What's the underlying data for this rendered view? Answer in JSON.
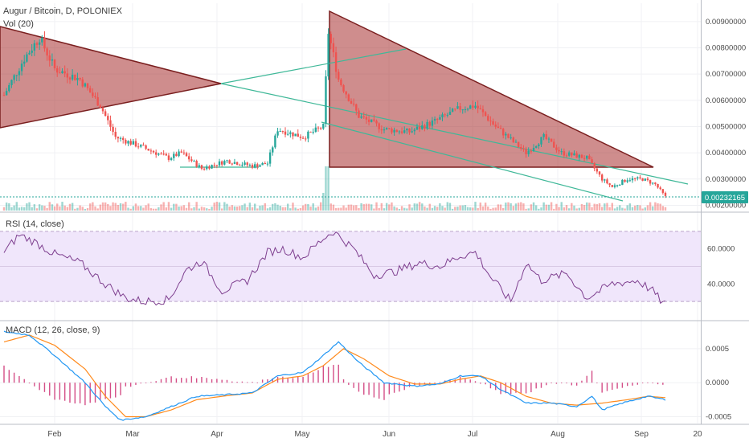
{
  "chart_data": {
    "symbol_title": "Augur / Bitcoin, D, POLONIEX",
    "volume_label": "Vol (20)",
    "rsi_label": "RSI (14, close)",
    "macd_label": "MACD (12, 26, close, 9)",
    "last_price": "0.00232165",
    "x_ticks": [
      "Feb",
      "Mar",
      "Apr",
      "May",
      "Jun",
      "Jul",
      "Aug",
      "Sep",
      "20"
    ],
    "price_axis": {
      "ticks": [
        "0.00900000",
        "0.00800000",
        "0.00700000",
        "0.00600000",
        "0.00500000",
        "0.00400000",
        "0.00300000",
        "0.00200000"
      ],
      "values": [
        0.009,
        0.008,
        0.007,
        0.006,
        0.005,
        0.004,
        0.003,
        0.002
      ],
      "range": [
        0.0018,
        0.0097
      ]
    },
    "rsi_axis": {
      "ticks": [
        "60.0000",
        "40.0000"
      ],
      "values": [
        60,
        40
      ],
      "range": [
        20,
        80
      ],
      "band": [
        30,
        70
      ]
    },
    "macd_axis": {
      "ticks": [
        "0.0005",
        "0.0000",
        "-0.0005"
      ],
      "values": [
        0.0005,
        0.0,
        -0.0005
      ],
      "range": [
        -0.0006,
        0.0009
      ]
    },
    "colors": {
      "up": "#26a69a",
      "down": "#ef5350",
      "rsi": "#7e3f8f",
      "rsi_band": "#f0e6fb",
      "macd": "#2196f3",
      "signal": "#ff8a1c",
      "histogram": "#cc2f72",
      "triangle_fill": "#a8302f",
      "triangle_edge": "#7a1f1f",
      "trendline": "#3fb898"
    },
    "price_anchors": [
      [
        0,
        0.0062
      ],
      [
        8,
        0.0076
      ],
      [
        14,
        0.0084
      ],
      [
        20,
        0.0072
      ],
      [
        30,
        0.0068
      ],
      [
        38,
        0.0058
      ],
      [
        44,
        0.0046
      ],
      [
        55,
        0.0042
      ],
      [
        65,
        0.0038
      ],
      [
        70,
        0.004
      ],
      [
        78,
        0.0034
      ],
      [
        88,
        0.0037
      ],
      [
        98,
        0.0035
      ],
      [
        104,
        0.0036
      ],
      [
        108,
        0.0049
      ],
      [
        118,
        0.0046
      ],
      [
        126,
        0.005
      ],
      [
        128,
        0.0086
      ],
      [
        132,
        0.0068
      ],
      [
        140,
        0.0054
      ],
      [
        150,
        0.0049
      ],
      [
        160,
        0.0048
      ],
      [
        170,
        0.0052
      ],
      [
        180,
        0.0057
      ],
      [
        186,
        0.0058
      ],
      [
        194,
        0.005
      ],
      [
        200,
        0.0045
      ],
      [
        206,
        0.004
      ],
      [
        213,
        0.0046
      ],
      [
        220,
        0.004
      ],
      [
        230,
        0.0038
      ],
      [
        236,
        0.003
      ],
      [
        240,
        0.0027
      ],
      [
        246,
        0.003
      ],
      [
        252,
        0.003
      ],
      [
        257,
        0.0028
      ],
      [
        261,
        0.00232
      ]
    ],
    "rsi_anchors": [
      [
        0,
        58
      ],
      [
        6,
        68
      ],
      [
        12,
        64
      ],
      [
        20,
        57
      ],
      [
        30,
        52
      ],
      [
        40,
        40
      ],
      [
        48,
        32
      ],
      [
        55,
        30
      ],
      [
        65,
        31
      ],
      [
        72,
        48
      ],
      [
        78,
        53
      ],
      [
        86,
        36
      ],
      [
        96,
        42
      ],
      [
        104,
        58
      ],
      [
        110,
        60
      ],
      [
        118,
        55
      ],
      [
        126,
        66
      ],
      [
        130,
        70
      ],
      [
        138,
        60
      ],
      [
        146,
        45
      ],
      [
        154,
        47
      ],
      [
        164,
        52
      ],
      [
        172,
        50
      ],
      [
        180,
        56
      ],
      [
        186,
        58
      ],
      [
        192,
        44
      ],
      [
        200,
        30
      ],
      [
        206,
        52
      ],
      [
        212,
        42
      ],
      [
        222,
        46
      ],
      [
        230,
        32
      ],
      [
        240,
        40
      ],
      [
        250,
        42
      ],
      [
        256,
        36
      ],
      [
        260,
        29
      ]
    ],
    "macd_anchors": [
      [
        0,
        0.00075
      ],
      [
        10,
        0.0007
      ],
      [
        20,
        0.0004
      ],
      [
        32,
        0.0
      ],
      [
        40,
        -0.00035
      ],
      [
        46,
        -0.00055
      ],
      [
        56,
        -0.0005
      ],
      [
        66,
        -0.00035
      ],
      [
        76,
        -0.0002
      ],
      [
        86,
        -0.00018
      ],
      [
        98,
        -0.00015
      ],
      [
        108,
        0.0001
      ],
      [
        118,
        0.00015
      ],
      [
        126,
        0.0004
      ],
      [
        132,
        0.0006
      ],
      [
        140,
        0.0003
      ],
      [
        150,
        0.0
      ],
      [
        162,
        -5e-05
      ],
      [
        172,
        -2e-05
      ],
      [
        180,
        0.0001
      ],
      [
        188,
        0.0001
      ],
      [
        196,
        -0.0001
      ],
      [
        206,
        -0.0003
      ],
      [
        216,
        -0.0003
      ],
      [
        226,
        -0.00035
      ],
      [
        232,
        -0.0002
      ],
      [
        236,
        -0.0004
      ],
      [
        244,
        -0.0003
      ],
      [
        254,
        -0.0002
      ],
      [
        261,
        -0.00025
      ]
    ],
    "signal_anchors": [
      [
        0,
        0.0006
      ],
      [
        10,
        0.0007
      ],
      [
        20,
        0.00055
      ],
      [
        32,
        0.0002
      ],
      [
        40,
        -0.0002
      ],
      [
        48,
        -0.0005
      ],
      [
        56,
        -0.0005
      ],
      [
        66,
        -0.0004
      ],
      [
        76,
        -0.00025
      ],
      [
        86,
        -0.0002
      ],
      [
        98,
        -0.00015
      ],
      [
        108,
        5e-05
      ],
      [
        118,
        0.0001
      ],
      [
        126,
        0.00025
      ],
      [
        134,
        0.0005
      ],
      [
        142,
        0.00035
      ],
      [
        152,
        0.0001
      ],
      [
        162,
        -2e-05
      ],
      [
        172,
        -2e-05
      ],
      [
        180,
        5e-05
      ],
      [
        188,
        0.0001
      ],
      [
        196,
        0.0
      ],
      [
        206,
        -0.0002
      ],
      [
        216,
        -0.0003
      ],
      [
        226,
        -0.00033
      ],
      [
        236,
        -0.0003
      ],
      [
        246,
        -0.00025
      ],
      [
        254,
        -0.0002
      ],
      [
        261,
        -0.00022
      ]
    ]
  }
}
